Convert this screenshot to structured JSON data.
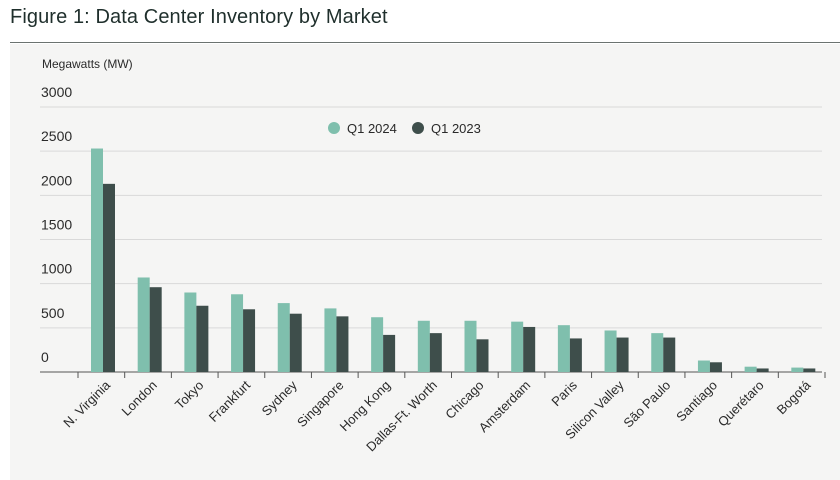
{
  "figure_title": "Figure 1: Data Center Inventory by Market",
  "chart_data": {
    "type": "bar",
    "title": "",
    "ylabel": "Megawatts (MW)",
    "xlabel": "",
    "ylim": [
      0,
      3000
    ],
    "yticks": [
      0,
      500,
      1000,
      1500,
      2000,
      2500,
      3000
    ],
    "grid": true,
    "legend_position": "top-center",
    "categories": [
      "N. Virginia",
      "London",
      "Tokyo",
      "Frankfurt",
      "Sydney",
      "Singapore",
      "Hong Kong",
      "Dallas-Ft. Worth",
      "Chicago",
      "Amsterdam",
      "Paris",
      "Silicon Valley",
      "São Paulo",
      "Santiago",
      "Querétaro",
      "Bogotá"
    ],
    "series": [
      {
        "name": "Q1 2024",
        "color": "#7fbfad",
        "values": [
          2530,
          1070,
          900,
          880,
          780,
          720,
          620,
          580,
          580,
          570,
          530,
          470,
          440,
          130,
          60,
          50
        ]
      },
      {
        "name": "Q1 2023",
        "color": "#3e4e4b",
        "values": [
          2130,
          960,
          750,
          710,
          660,
          630,
          420,
          440,
          370,
          510,
          380,
          390,
          390,
          110,
          40,
          40
        ]
      }
    ]
  }
}
